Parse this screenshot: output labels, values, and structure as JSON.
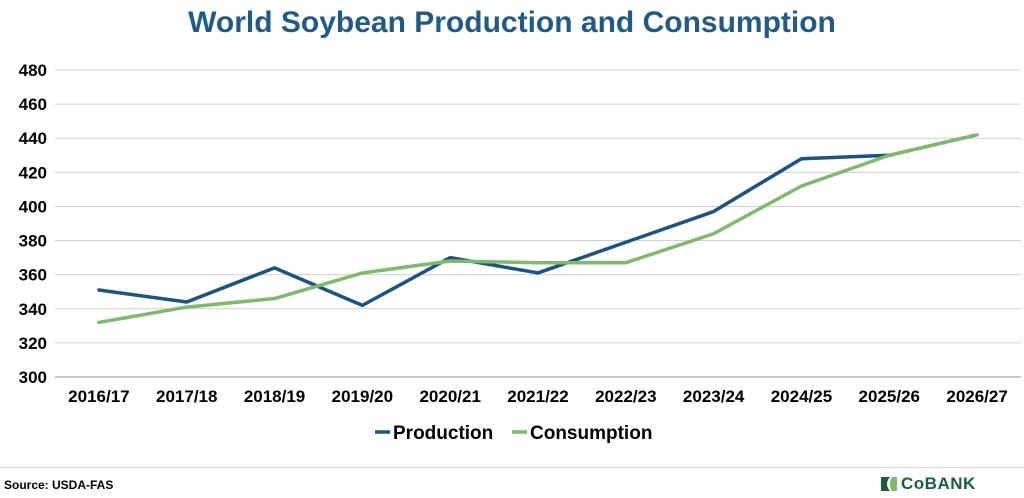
{
  "colors": {
    "title": "#1f5a88",
    "production": "#1a5480",
    "consumption": "#7dbb6a",
    "grid": "#d0d0d0",
    "logo": "#1c5d3d"
  },
  "chart_data": {
    "type": "line",
    "title": "World Soybean Production and Consumption",
    "xlabel": "",
    "ylabel": "",
    "categories": [
      "2016/17",
      "2017/18",
      "2018/19",
      "2019/20",
      "2020/21",
      "2021/22",
      "2022/23",
      "2023/24",
      "2024/25",
      "2025/26",
      "2026/27"
    ],
    "series": [
      {
        "name": "Production",
        "values": [
          351,
          344,
          364,
          342,
          370,
          361,
          379,
          397,
          428,
          430,
          442
        ],
        "projected_from_index": 9
      },
      {
        "name": "Consumption",
        "values": [
          332,
          341,
          346,
          361,
          368,
          367,
          367,
          384,
          412,
          430,
          442
        ]
      }
    ],
    "ylim": [
      300,
      480
    ],
    "yticks": [
      300,
      320,
      340,
      360,
      380,
      400,
      420,
      440,
      460,
      480
    ],
    "grid": true,
    "legend": "bottom-center"
  },
  "footer": {
    "source": "Source: USDA-FAS",
    "logo_text": "CoBANK"
  },
  "icons": {
    "logo": "cobank-leaf-icon"
  }
}
